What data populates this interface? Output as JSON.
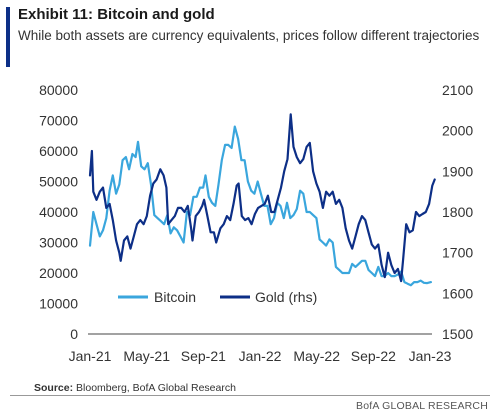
{
  "header": {
    "title": "Exhibit 11: Bitcoin and gold",
    "subtitle": "While both assets are currency equivalents, prices follow different trajectories"
  },
  "footer": {
    "source_label": "Source:",
    "source_text": "Bloomberg, BofA Global Research",
    "brand": "BofA GLOBAL RESEARCH"
  },
  "colors": {
    "bitcoin": "#3aa6dd",
    "gold": "#0d2f87",
    "accent": "#0d2f87"
  },
  "chart_data": {
    "type": "line",
    "title": "Exhibit 11: Bitcoin and gold",
    "x_ticks": [
      "Jan-21",
      "May-21",
      "Sep-21",
      "Jan-22",
      "May-22",
      "Sep-22",
      "Jan-23"
    ],
    "x_range": [
      "2021-01-01",
      "2023-01-01"
    ],
    "y_left": {
      "range": [
        0,
        80000
      ],
      "ticks": [
        "0",
        "10000",
        "20000",
        "30000",
        "40000",
        "50000",
        "60000",
        "70000",
        "80000"
      ]
    },
    "y_right": {
      "range": [
        1500,
        2100
      ],
      "ticks": [
        "1500",
        "1600",
        "1700",
        "1800",
        "1900",
        "2000",
        "2100"
      ]
    },
    "grid": false,
    "legend_position": "bottom-left",
    "series": [
      {
        "name": "Bitcoin",
        "axis": "left",
        "color": "#3aa6dd",
        "points": [
          [
            "2021-01-01",
            29000
          ],
          [
            "2021-01-08",
            40000
          ],
          [
            "2021-01-15",
            36000
          ],
          [
            "2021-01-22",
            32000
          ],
          [
            "2021-01-29",
            34000
          ],
          [
            "2021-02-05",
            38000
          ],
          [
            "2021-02-12",
            47000
          ],
          [
            "2021-02-19",
            52000
          ],
          [
            "2021-02-26",
            46000
          ],
          [
            "2021-03-05",
            49000
          ],
          [
            "2021-03-12",
            57000
          ],
          [
            "2021-03-19",
            58000
          ],
          [
            "2021-03-26",
            54000
          ],
          [
            "2021-04-02",
            59000
          ],
          [
            "2021-04-09",
            58000
          ],
          [
            "2021-04-14",
            63000
          ],
          [
            "2021-04-21",
            55000
          ],
          [
            "2021-04-28",
            54000
          ],
          [
            "2021-05-05",
            56000
          ],
          [
            "2021-05-12",
            49000
          ],
          [
            "2021-05-19",
            39000
          ],
          [
            "2021-05-26",
            38000
          ],
          [
            "2021-06-02",
            37000
          ],
          [
            "2021-06-09",
            36000
          ],
          [
            "2021-06-16",
            39000
          ],
          [
            "2021-06-23",
            33000
          ],
          [
            "2021-06-30",
            35000
          ],
          [
            "2021-07-07",
            34000
          ],
          [
            "2021-07-14",
            32000
          ],
          [
            "2021-07-21",
            30000
          ],
          [
            "2021-07-28",
            40000
          ],
          [
            "2021-08-04",
            39000
          ],
          [
            "2021-08-11",
            45000
          ],
          [
            "2021-08-18",
            45000
          ],
          [
            "2021-08-25",
            48000
          ],
          [
            "2021-09-01",
            48000
          ],
          [
            "2021-09-06",
            52000
          ],
          [
            "2021-09-13",
            45000
          ],
          [
            "2021-09-20",
            43000
          ],
          [
            "2021-09-27",
            42000
          ],
          [
            "2021-10-04",
            49000
          ],
          [
            "2021-10-11",
            57000
          ],
          [
            "2021-10-18",
            62000
          ],
          [
            "2021-10-25",
            62000
          ],
          [
            "2021-11-01",
            61000
          ],
          [
            "2021-11-08",
            68000
          ],
          [
            "2021-11-15",
            64000
          ],
          [
            "2021-11-22",
            57000
          ],
          [
            "2021-11-29",
            57000
          ],
          [
            "2021-12-06",
            50000
          ],
          [
            "2021-12-13",
            47000
          ],
          [
            "2021-12-20",
            46000
          ],
          [
            "2021-12-27",
            50000
          ],
          [
            "2022-01-03",
            46000
          ],
          [
            "2022-01-10",
            42000
          ],
          [
            "2022-01-17",
            42000
          ],
          [
            "2022-01-24",
            36000
          ],
          [
            "2022-01-31",
            38000
          ],
          [
            "2022-02-07",
            43000
          ],
          [
            "2022-02-14",
            42000
          ],
          [
            "2022-02-21",
            38000
          ],
          [
            "2022-02-28",
            43000
          ],
          [
            "2022-03-07",
            38000
          ],
          [
            "2022-03-14",
            39000
          ],
          [
            "2022-03-21",
            41000
          ],
          [
            "2022-03-28",
            47000
          ],
          [
            "2022-04-04",
            46000
          ],
          [
            "2022-04-11",
            40000
          ],
          [
            "2022-04-18",
            40000
          ],
          [
            "2022-04-25",
            39000
          ],
          [
            "2022-05-02",
            38000
          ],
          [
            "2022-05-09",
            31000
          ],
          [
            "2022-05-16",
            30000
          ],
          [
            "2022-05-23",
            29000
          ],
          [
            "2022-05-30",
            31000
          ],
          [
            "2022-06-06",
            30000
          ],
          [
            "2022-06-13",
            22000
          ],
          [
            "2022-06-20",
            21000
          ],
          [
            "2022-06-27",
            20000
          ],
          [
            "2022-07-04",
            20000
          ],
          [
            "2022-07-11",
            20000
          ],
          [
            "2022-07-18",
            23000
          ],
          [
            "2022-07-25",
            22000
          ],
          [
            "2022-08-01",
            23000
          ],
          [
            "2022-08-08",
            24000
          ],
          [
            "2022-08-15",
            24000
          ],
          [
            "2022-08-22",
            21000
          ],
          [
            "2022-08-29",
            20000
          ],
          [
            "2022-09-05",
            19000
          ],
          [
            "2022-09-12",
            22000
          ],
          [
            "2022-09-19",
            19000
          ],
          [
            "2022-09-26",
            19000
          ],
          [
            "2022-10-03",
            20000
          ],
          [
            "2022-10-10",
            19000
          ],
          [
            "2022-10-17",
            19000
          ],
          [
            "2022-10-24",
            19500
          ],
          [
            "2022-10-31",
            20500
          ],
          [
            "2022-11-07",
            17000
          ],
          [
            "2022-11-14",
            16500
          ],
          [
            "2022-11-21",
            16000
          ],
          [
            "2022-11-28",
            17000
          ],
          [
            "2022-12-05",
            17000
          ],
          [
            "2022-12-12",
            17500
          ],
          [
            "2022-12-19",
            16800
          ],
          [
            "2022-12-26",
            16700
          ],
          [
            "2023-01-03",
            17000
          ]
        ]
      },
      {
        "name": "Gold (rhs)",
        "axis": "right",
        "color": "#0d2f87",
        "points": [
          [
            "2021-01-01",
            1890
          ],
          [
            "2021-01-05",
            1950
          ],
          [
            "2021-01-08",
            1850
          ],
          [
            "2021-01-15",
            1830
          ],
          [
            "2021-01-22",
            1850
          ],
          [
            "2021-01-29",
            1860
          ],
          [
            "2021-02-05",
            1810
          ],
          [
            "2021-02-12",
            1820
          ],
          [
            "2021-02-19",
            1780
          ],
          [
            "2021-02-26",
            1730
          ],
          [
            "2021-03-05",
            1700
          ],
          [
            "2021-03-08",
            1680
          ],
          [
            "2021-03-15",
            1730
          ],
          [
            "2021-03-22",
            1740
          ],
          [
            "2021-03-29",
            1710
          ],
          [
            "2021-04-05",
            1740
          ],
          [
            "2021-04-12",
            1770
          ],
          [
            "2021-04-19",
            1780
          ],
          [
            "2021-04-26",
            1770
          ],
          [
            "2021-05-03",
            1790
          ],
          [
            "2021-05-10",
            1840
          ],
          [
            "2021-05-17",
            1870
          ],
          [
            "2021-05-24",
            1880
          ],
          [
            "2021-06-01",
            1905
          ],
          [
            "2021-06-08",
            1890
          ],
          [
            "2021-06-14",
            1860
          ],
          [
            "2021-06-18",
            1770
          ],
          [
            "2021-06-25",
            1780
          ],
          [
            "2021-07-02",
            1790
          ],
          [
            "2021-07-09",
            1810
          ],
          [
            "2021-07-16",
            1810
          ],
          [
            "2021-07-23",
            1800
          ],
          [
            "2021-07-30",
            1815
          ],
          [
            "2021-08-06",
            1760
          ],
          [
            "2021-08-09",
            1730
          ],
          [
            "2021-08-16",
            1790
          ],
          [
            "2021-08-23",
            1800
          ],
          [
            "2021-08-30",
            1815
          ],
          [
            "2021-09-03",
            1830
          ],
          [
            "2021-09-10",
            1790
          ],
          [
            "2021-09-17",
            1750
          ],
          [
            "2021-09-24",
            1750
          ],
          [
            "2021-09-29",
            1725
          ],
          [
            "2021-10-08",
            1760
          ],
          [
            "2021-10-15",
            1770
          ],
          [
            "2021-10-22",
            1790
          ],
          [
            "2021-10-29",
            1780
          ],
          [
            "2021-11-05",
            1820
          ],
          [
            "2021-11-12",
            1865
          ],
          [
            "2021-11-16",
            1870
          ],
          [
            "2021-11-23",
            1790
          ],
          [
            "2021-11-30",
            1780
          ],
          [
            "2021-12-07",
            1785
          ],
          [
            "2021-12-14",
            1770
          ],
          [
            "2021-12-21",
            1795
          ],
          [
            "2021-12-28",
            1810
          ],
          [
            "2022-01-04",
            1815
          ],
          [
            "2022-01-11",
            1820
          ],
          [
            "2022-01-18",
            1840
          ],
          [
            "2022-01-25",
            1800
          ],
          [
            "2022-02-01",
            1800
          ],
          [
            "2022-02-08",
            1830
          ],
          [
            "2022-02-15",
            1860
          ],
          [
            "2022-02-22",
            1900
          ],
          [
            "2022-03-01",
            1930
          ],
          [
            "2022-03-08",
            2040
          ],
          [
            "2022-03-14",
            1960
          ],
          [
            "2022-03-21",
            1935
          ],
          [
            "2022-03-28",
            1920
          ],
          [
            "2022-04-04",
            1930
          ],
          [
            "2022-04-11",
            1960
          ],
          [
            "2022-04-18",
            1970
          ],
          [
            "2022-04-25",
            1900
          ],
          [
            "2022-05-02",
            1870
          ],
          [
            "2022-05-09",
            1850
          ],
          [
            "2022-05-16",
            1810
          ],
          [
            "2022-05-23",
            1850
          ],
          [
            "2022-05-30",
            1840
          ],
          [
            "2022-06-06",
            1850
          ],
          [
            "2022-06-13",
            1820
          ],
          [
            "2022-06-20",
            1830
          ],
          [
            "2022-06-27",
            1810
          ],
          [
            "2022-07-04",
            1760
          ],
          [
            "2022-07-11",
            1730
          ],
          [
            "2022-07-18",
            1710
          ],
          [
            "2022-07-25",
            1740
          ],
          [
            "2022-08-01",
            1770
          ],
          [
            "2022-08-08",
            1790
          ],
          [
            "2022-08-15",
            1780
          ],
          [
            "2022-08-22",
            1750
          ],
          [
            "2022-08-29",
            1720
          ],
          [
            "2022-09-05",
            1710
          ],
          [
            "2022-09-12",
            1720
          ],
          [
            "2022-09-19",
            1670
          ],
          [
            "2022-09-26",
            1640
          ],
          [
            "2022-10-03",
            1700
          ],
          [
            "2022-10-10",
            1670
          ],
          [
            "2022-10-17",
            1650
          ],
          [
            "2022-10-24",
            1660
          ],
          [
            "2022-10-31",
            1630
          ],
          [
            "2022-11-04",
            1680
          ],
          [
            "2022-11-11",
            1770
          ],
          [
            "2022-11-18",
            1750
          ],
          [
            "2022-11-25",
            1755
          ],
          [
            "2022-12-02",
            1800
          ],
          [
            "2022-12-09",
            1790
          ],
          [
            "2022-12-16",
            1795
          ],
          [
            "2022-12-23",
            1800
          ],
          [
            "2022-12-30",
            1820
          ],
          [
            "2023-01-06",
            1865
          ],
          [
            "2023-01-11",
            1880
          ]
        ]
      }
    ]
  }
}
